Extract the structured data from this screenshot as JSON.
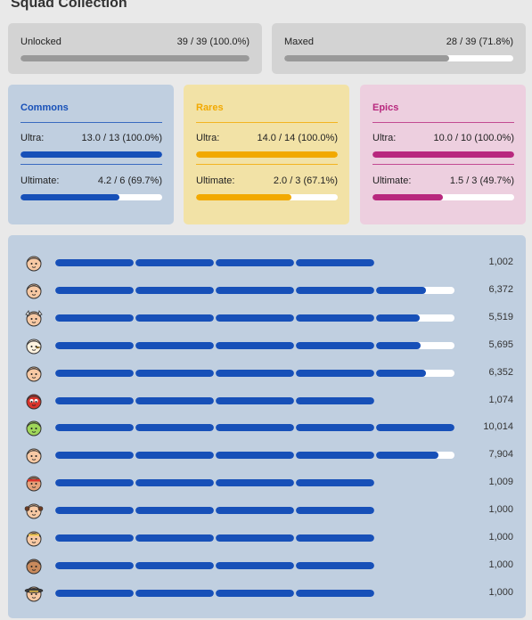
{
  "page_title": "Squad Collection",
  "summary": {
    "unlocked": {
      "label": "Unlocked",
      "value": "39 / 39 (100.0%)",
      "fraction": 1.0
    },
    "maxed": {
      "label": "Maxed",
      "value": "28 / 39 (71.8%)",
      "fraction": 0.718
    }
  },
  "categories": [
    {
      "name": "Commons",
      "color": "#1750b8",
      "bg": "#c0cfe0",
      "ultra": {
        "label": "Ultra:",
        "value": "13.0 / 13 (100.0%)",
        "fraction": 1.0
      },
      "ultimate": {
        "label": "Ultimate:",
        "value": "4.2 / 6 (69.7%)",
        "fraction": 0.697
      }
    },
    {
      "name": "Rares",
      "color": "#f2a900",
      "bg": "#f2e2a6",
      "ultra": {
        "label": "Ultra:",
        "value": "14.0 / 14 (100.0%)",
        "fraction": 1.0
      },
      "ultimate": {
        "label": "Ultimate:",
        "value": "2.0 / 3 (67.1%)",
        "fraction": 0.671
      }
    },
    {
      "name": "Epics",
      "color": "#b8287e",
      "bg": "#edcfdf",
      "ultra": {
        "label": "Ultra:",
        "value": "10.0 / 10 (100.0%)",
        "fraction": 1.0
      },
      "ultimate": {
        "label": "Ultimate:",
        "value": "1.5 / 3 (49.7%)",
        "fraction": 0.497
      }
    }
  ],
  "brawlers": [
    {
      "avatar": "pink-hair-avatar-icon",
      "value": "1,002",
      "segments": [
        1,
        1,
        1,
        1
      ]
    },
    {
      "avatar": "blonde-hair-avatar-icon",
      "value": "6,372",
      "segments": [
        1,
        1,
        1,
        1,
        0.64
      ]
    },
    {
      "avatar": "viking-helmet-avatar-icon",
      "value": "5,519",
      "segments": [
        1,
        1,
        1,
        1,
        0.56
      ]
    },
    {
      "avatar": "chicken-avatar-icon",
      "value": "5,695",
      "segments": [
        1,
        1,
        1,
        1,
        0.57
      ]
    },
    {
      "avatar": "red-hair-avatar-icon",
      "value": "6,352",
      "segments": [
        1,
        1,
        1,
        1,
        0.64
      ]
    },
    {
      "avatar": "luchador-mask-avatar-icon",
      "value": "1,074",
      "segments": [
        1,
        1,
        1,
        1
      ]
    },
    {
      "avatar": "green-goblin-avatar-icon",
      "value": "10,014",
      "segments": [
        1,
        1,
        1,
        1,
        1
      ]
    },
    {
      "avatar": "orange-hair-avatar-icon",
      "value": "7,904",
      "segments": [
        1,
        1,
        1,
        1,
        0.8
      ]
    },
    {
      "avatar": "headband-avatar-icon",
      "value": "1,009",
      "segments": [
        1,
        1,
        1,
        1
      ]
    },
    {
      "avatar": "pigtails-avatar-icon",
      "value": "1,000",
      "segments": [
        1,
        1,
        1,
        1
      ]
    },
    {
      "avatar": "purple-hair-avatar-icon",
      "value": "1,000",
      "segments": [
        1,
        1,
        1,
        1
      ]
    },
    {
      "avatar": "bald-avatar-icon",
      "value": "1,000",
      "segments": [
        1,
        1,
        1,
        1
      ]
    },
    {
      "avatar": "sombrero-avatar-icon",
      "value": "1,000",
      "segments": [
        1,
        1,
        1,
        1
      ]
    }
  ]
}
